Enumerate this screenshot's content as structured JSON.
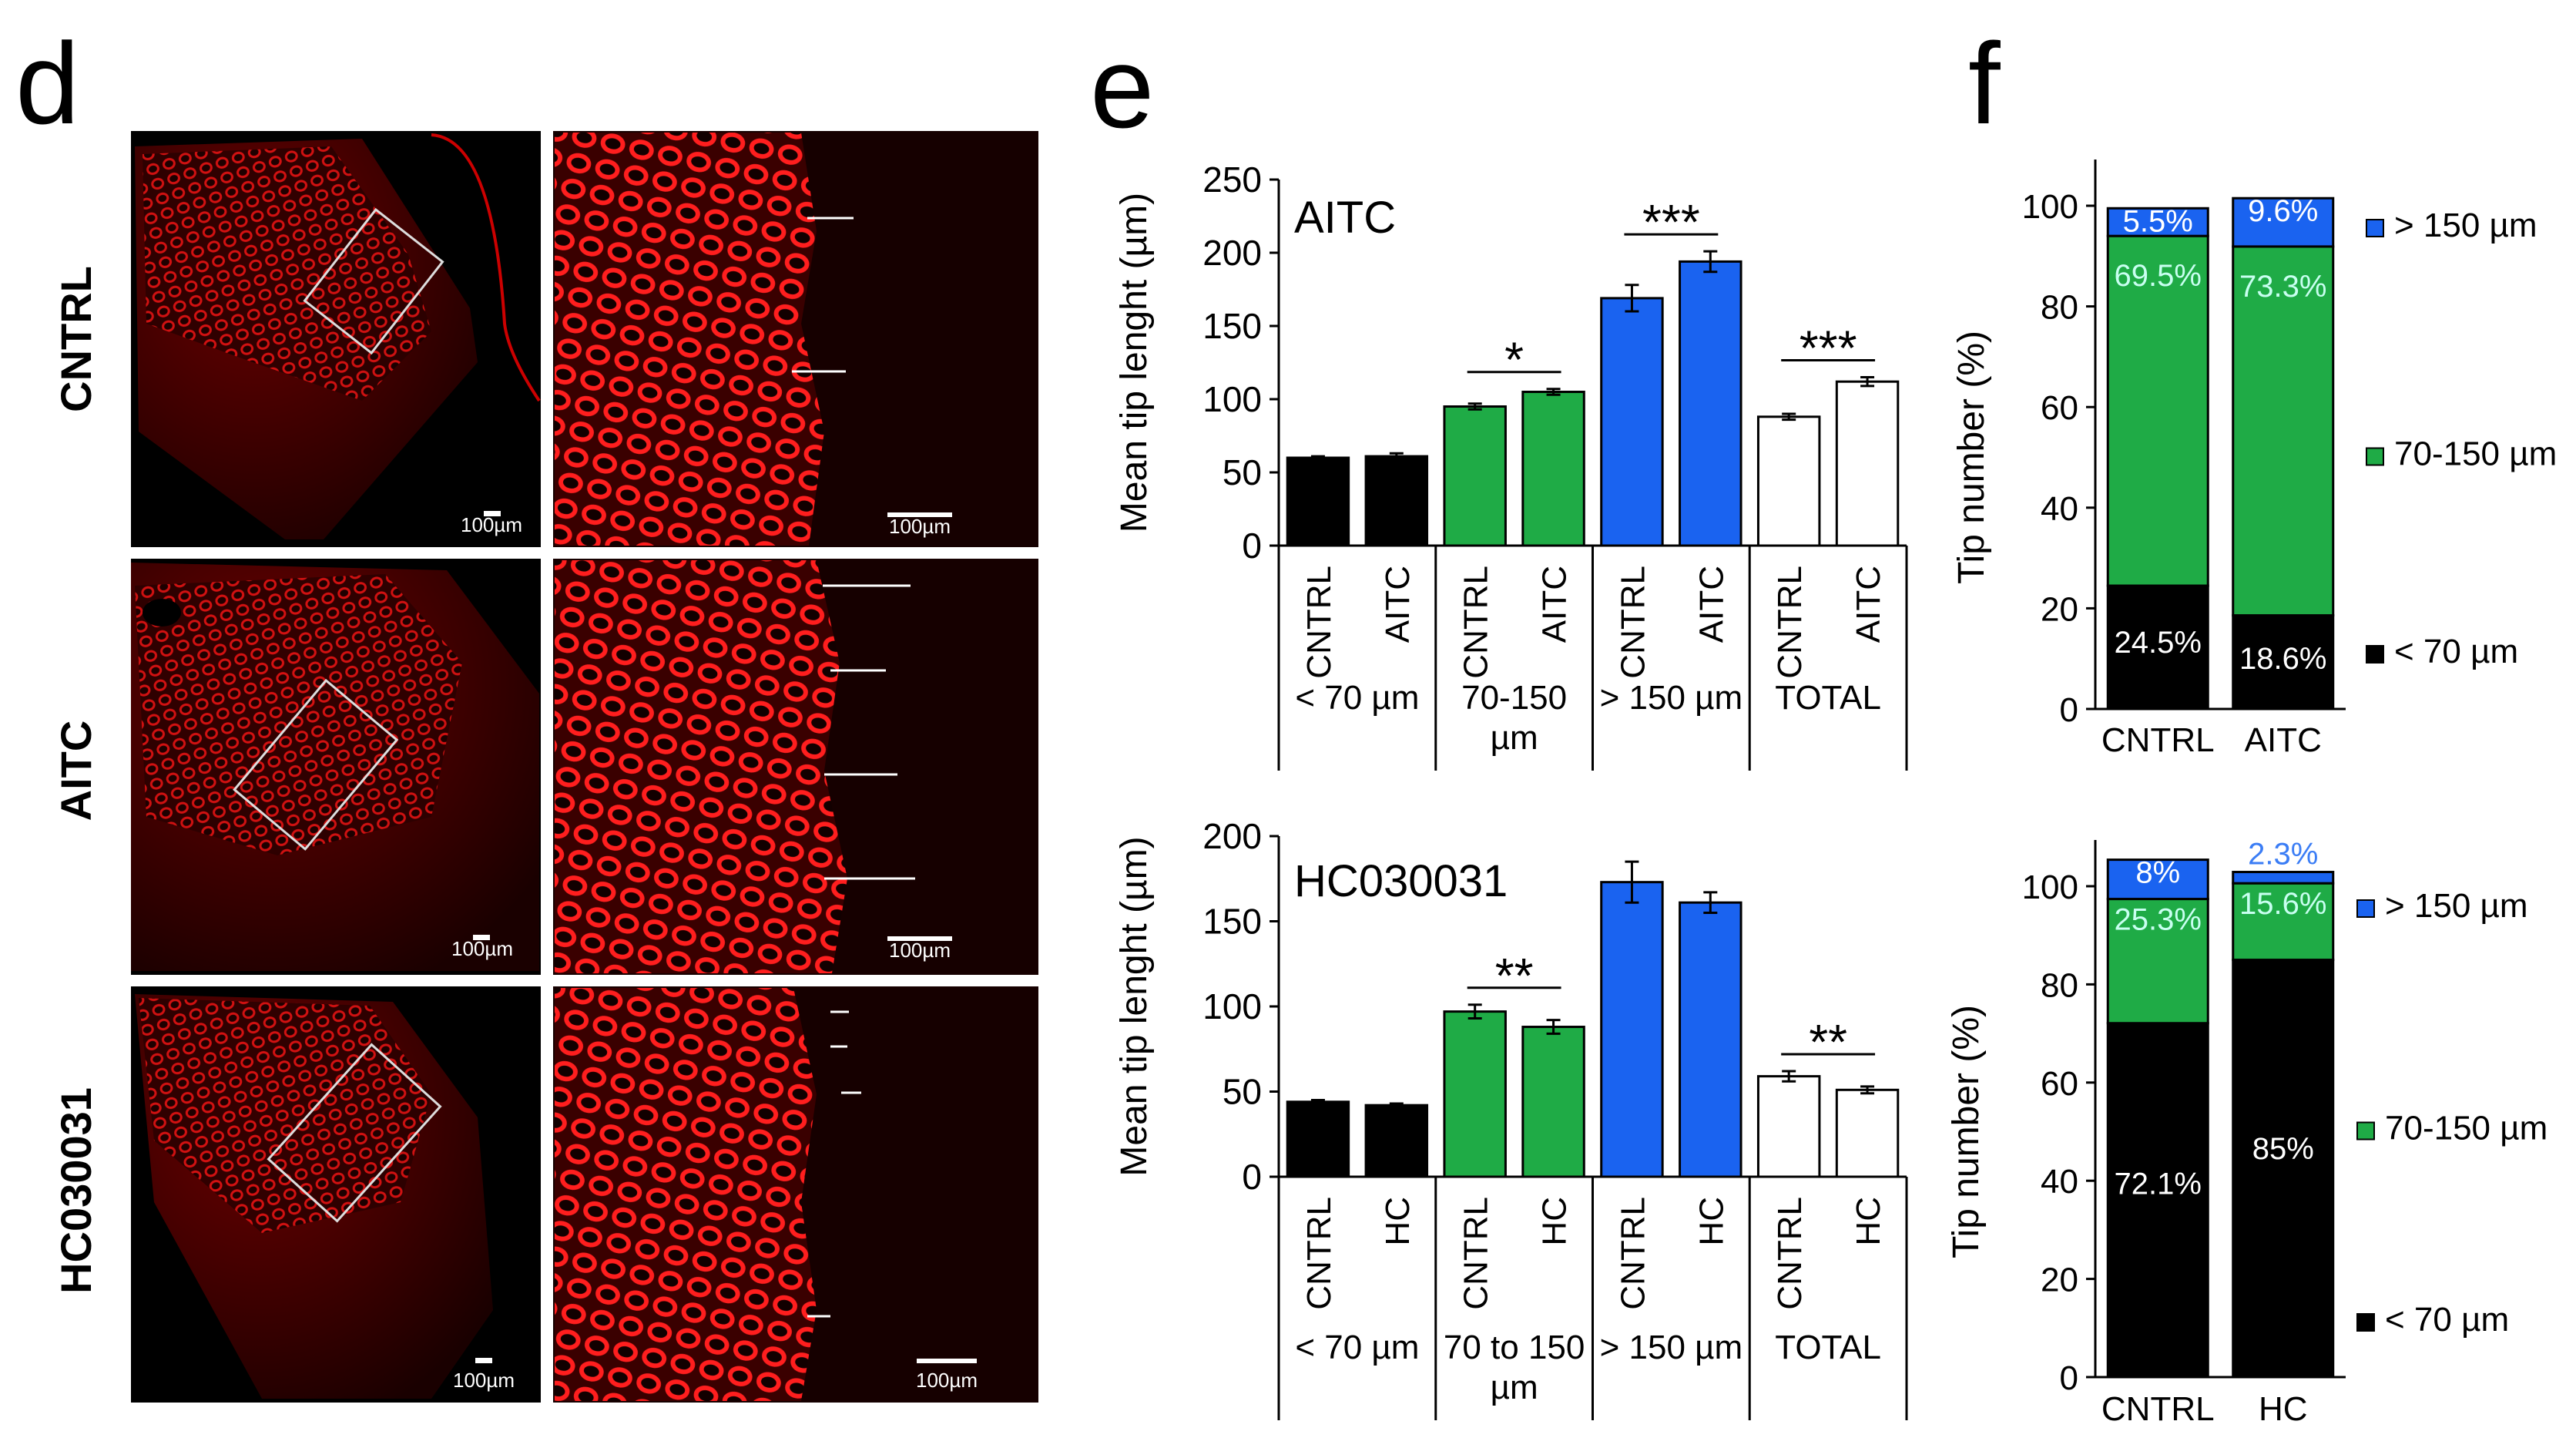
{
  "panels": {
    "d": {
      "letter": "d",
      "rows": [
        {
          "label": "CNTRL",
          "scale_left": "100µm",
          "scale_right": "100µm"
        },
        {
          "label": "AITC",
          "scale_left": "100µm",
          "scale_right": "100µm"
        },
        {
          "label": "HC030031",
          "scale_left": "100µm",
          "scale_right": "100µm"
        }
      ]
    },
    "e": {
      "letter": "e"
    },
    "f": {
      "letter": "f"
    }
  },
  "colors": {
    "black": "#000000",
    "green": "#1fab46",
    "blue": "#1a63f0",
    "white": "#ffffff",
    "tissue": "#e01010"
  },
  "chart_data": [
    {
      "id": "e-top",
      "type": "bar",
      "annotation": "AITC",
      "ylabel": "Mean tip lenght (µm)",
      "ylim": [
        0,
        250
      ],
      "yticks": [
        0,
        50,
        100,
        150,
        200,
        250
      ],
      "groups": [
        "< 70 µm",
        "70-150 µm",
        "> 150 µm",
        "TOTAL"
      ],
      "categories": [
        "CNTRL",
        "AITC",
        "CNTRL",
        "AITC",
        "CNTRL",
        "AITC",
        "CNTRL",
        "AITC"
      ],
      "values": [
        60,
        61,
        95,
        105,
        169,
        194,
        88,
        112
      ],
      "errors": [
        1,
        2,
        2,
        2,
        9,
        7,
        2,
        3
      ],
      "bar_colors": [
        "black",
        "black",
        "green",
        "green",
        "blue",
        "blue",
        "white",
        "white"
      ],
      "significance": [
        {
          "group": 1,
          "label": "*"
        },
        {
          "group": 2,
          "label": "***"
        },
        {
          "group": 3,
          "label": "***"
        }
      ]
    },
    {
      "id": "e-bottom",
      "type": "bar",
      "annotation": "HC030031",
      "ylabel": "Mean tip lenght (µm)",
      "ylim": [
        0,
        200
      ],
      "yticks": [
        0,
        50,
        100,
        150,
        200
      ],
      "groups": [
        "< 70 µm",
        "70 to 150 µm",
        "> 150 µm",
        "TOTAL"
      ],
      "categories": [
        "CNTRL",
        "HC",
        "CNTRL",
        "HC",
        "CNTRL",
        "HC",
        "CNTRL",
        "HC"
      ],
      "values": [
        44,
        42,
        97,
        88,
        173,
        161,
        59,
        51
      ],
      "errors": [
        1,
        1,
        4,
        4,
        12,
        6,
        3,
        2
      ],
      "bar_colors": [
        "black",
        "black",
        "green",
        "green",
        "blue",
        "blue",
        "white",
        "white"
      ],
      "significance": [
        {
          "group": 1,
          "label": "**"
        },
        {
          "group": 3,
          "label": "**"
        }
      ]
    },
    {
      "id": "f-top",
      "type": "bar",
      "stacked": true,
      "ylabel": "Tip number (%)",
      "ylim": [
        0,
        100
      ],
      "yticks": [
        0,
        20,
        40,
        60,
        80,
        100
      ],
      "categories": [
        "CNTRL",
        "AITC"
      ],
      "series": [
        {
          "name": "< 70 µm",
          "color": "black",
          "values": [
            24.5,
            18.6
          ],
          "labels": [
            "24.5%",
            "18.6%"
          ]
        },
        {
          "name": "70-150 µm",
          "color": "green",
          "values": [
            69.5,
            73.3
          ],
          "labels": [
            "69.5%",
            "73.3%"
          ]
        },
        {
          "name": "> 150 µm",
          "color": "blue",
          "values": [
            5.5,
            9.6
          ],
          "labels": [
            "5.5%",
            "9.6%"
          ]
        }
      ]
    },
    {
      "id": "f-bottom",
      "type": "bar",
      "stacked": true,
      "ylabel": "Tip number (%)",
      "ylim": [
        0,
        100
      ],
      "yticks": [
        0,
        20,
        40,
        60,
        80,
        100
      ],
      "categories": [
        "CNTRL",
        "HC"
      ],
      "series": [
        {
          "name": "< 70 µm",
          "color": "black",
          "values": [
            72.1,
            85
          ],
          "labels": [
            "72.1%",
            "85%"
          ]
        },
        {
          "name": "70-150 µm",
          "color": "green",
          "values": [
            25.3,
            15.6
          ],
          "labels": [
            "25.3%",
            "15.6%"
          ]
        },
        {
          "name": "> 150 µm",
          "color": "blue",
          "values": [
            8,
            2.3
          ],
          "labels": [
            "8%",
            "2.3%"
          ]
        }
      ]
    }
  ]
}
